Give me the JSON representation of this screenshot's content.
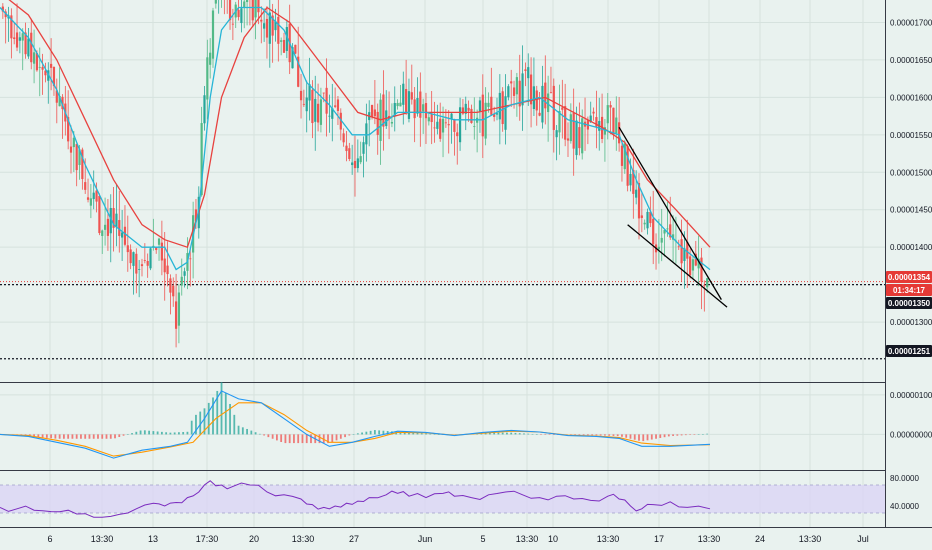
{
  "colors": {
    "background": "#e9f2ef",
    "up_candle": "#26a69a",
    "up_candle_alt": "#53b987",
    "down_candle": "#ef5350",
    "ema_fast": "#26b5d6",
    "ema_slow": "#e8423f",
    "macd_line": "#2196f3",
    "signal_line": "#ff9800",
    "rsi_line": "#7b2cbf",
    "rsi_band": "#d9d3f5",
    "price_tag": "#e53935",
    "dark_tag": "#131722",
    "axis_text": "#131722"
  },
  "price_tags": {
    "last_price": "0.00001354",
    "countdown": "01:34:17",
    "level_1": "0.00001350",
    "level_2": "0.00001251"
  },
  "chart_data": [
    {
      "type": "candlestick",
      "title": "",
      "y_ticks": [
        "0.00001700",
        "0.00001650",
        "0.00001600",
        "0.00001550",
        "0.00001500",
        "0.00001450",
        "0.00001400",
        "0.00001300"
      ],
      "ylim": [
        1.22e-05,
        1.73e-05
      ],
      "x_ticks": [
        "6",
        "13:30",
        "13",
        "17:30",
        "20",
        "13:30",
        "27",
        "Jun",
        "5",
        "13:30",
        "10",
        "13:30",
        "17",
        "13:30",
        "24",
        "13:30",
        "Jul"
      ],
      "horizontal_levels": [
        1.354e-05,
        1.35e-05,
        1.251e-05
      ],
      "close_series": [
        [
          0,
          1.72e-05
        ],
        [
          5,
          1.695e-05
        ],
        [
          10,
          1.665e-05
        ],
        [
          15,
          1.64e-05
        ],
        [
          20,
          1.6e-05
        ],
        [
          25,
          1.55e-05
        ],
        [
          30,
          1.49e-05
        ],
        [
          35,
          1.44e-05
        ],
        [
          40,
          1.43e-05
        ],
        [
          45,
          1.4e-05
        ],
        [
          50,
          1.38e-05
        ],
        [
          55,
          1.41e-05
        ],
        [
          60,
          1.36e-05
        ],
        [
          62,
          1.3e-05
        ],
        [
          64,
          1.35e-05
        ],
        [
          66,
          1.38e-05
        ],
        [
          70,
          1.48e-05
        ],
        [
          72,
          1.62e-05
        ],
        [
          75,
          1.71e-05
        ],
        [
          78,
          1.75e-05
        ],
        [
          82,
          1.72e-05
        ],
        [
          86,
          1.73e-05
        ],
        [
          90,
          1.72e-05
        ],
        [
          95,
          1.7e-05
        ],
        [
          100,
          1.68e-05
        ],
        [
          104,
          1.64e-05
        ],
        [
          108,
          1.6e-05
        ],
        [
          112,
          1.58e-05
        ],
        [
          116,
          1.59e-05
        ],
        [
          120,
          1.56e-05
        ],
        [
          124,
          1.53e-05
        ],
        [
          127,
          1.52e-05
        ],
        [
          130,
          1.56e-05
        ],
        [
          135,
          1.58e-05
        ],
        [
          140,
          1.6e-05
        ],
        [
          145,
          1.59e-05
        ],
        [
          150,
          1.58e-05
        ],
        [
          153,
          1.55e-05
        ],
        [
          157,
          1.56e-05
        ],
        [
          160,
          1.57e-05
        ],
        [
          165,
          1.58e-05
        ],
        [
          170,
          1.57e-05
        ],
        [
          175,
          1.58e-05
        ],
        [
          180,
          1.6e-05
        ],
        [
          185,
          1.62e-05
        ],
        [
          190,
          1.6e-05
        ],
        [
          195,
          1.58e-05
        ],
        [
          200,
          1.56e-05
        ],
        [
          205,
          1.55e-05
        ],
        [
          210,
          1.56e-05
        ],
        [
          215,
          1.57e-05
        ],
        [
          218,
          1.55e-05
        ],
        [
          222,
          1.48e-05
        ],
        [
          225,
          1.44e-05
        ],
        [
          230,
          1.42e-05
        ],
        [
          235,
          1.41e-05
        ],
        [
          240,
          1.39e-05
        ],
        [
          245,
          1.37e-05
        ],
        [
          250,
          1.36e-05
        ]
      ],
      "ema_fast": [
        [
          0,
          1.72e-05
        ],
        [
          10,
          1.68e-05
        ],
        [
          20,
          1.61e-05
        ],
        [
          30,
          1.51e-05
        ],
        [
          40,
          1.43e-05
        ],
        [
          50,
          1.4e-05
        ],
        [
          58,
          1.4e-05
        ],
        [
          62,
          1.37e-05
        ],
        [
          66,
          1.38e-05
        ],
        [
          70,
          1.45e-05
        ],
        [
          74,
          1.6e-05
        ],
        [
          78,
          1.69e-05
        ],
        [
          84,
          1.72e-05
        ],
        [
          92,
          1.72e-05
        ],
        [
          100,
          1.69e-05
        ],
        [
          108,
          1.62e-05
        ],
        [
          116,
          1.59e-05
        ],
        [
          124,
          1.55e-05
        ],
        [
          130,
          1.55e-05
        ],
        [
          140,
          1.58e-05
        ],
        [
          150,
          1.58e-05
        ],
        [
          160,
          1.57e-05
        ],
        [
          170,
          1.57e-05
        ],
        [
          180,
          1.59e-05
        ],
        [
          190,
          1.6e-05
        ],
        [
          200,
          1.57e-05
        ],
        [
          210,
          1.56e-05
        ],
        [
          218,
          1.55e-05
        ],
        [
          224,
          1.49e-05
        ],
        [
          230,
          1.44e-05
        ],
        [
          240,
          1.4e-05
        ],
        [
          250,
          1.37e-05
        ]
      ],
      "ema_slow": [
        [
          0,
          1.74e-05
        ],
        [
          10,
          1.71e-05
        ],
        [
          20,
          1.65e-05
        ],
        [
          30,
          1.57e-05
        ],
        [
          40,
          1.49e-05
        ],
        [
          50,
          1.43e-05
        ],
        [
          58,
          1.41e-05
        ],
        [
          66,
          1.4e-05
        ],
        [
          72,
          1.47e-05
        ],
        [
          78,
          1.6e-05
        ],
        [
          86,
          1.68e-05
        ],
        [
          94,
          1.72e-05
        ],
        [
          102,
          1.7e-05
        ],
        [
          110,
          1.66e-05
        ],
        [
          118,
          1.62e-05
        ],
        [
          126,
          1.58e-05
        ],
        [
          134,
          1.57e-05
        ],
        [
          144,
          1.58e-05
        ],
        [
          156,
          1.58e-05
        ],
        [
          168,
          1.58e-05
        ],
        [
          180,
          1.59e-05
        ],
        [
          192,
          1.6e-05
        ],
        [
          202,
          1.58e-05
        ],
        [
          212,
          1.56e-05
        ],
        [
          220,
          1.54e-05
        ],
        [
          228,
          1.49e-05
        ],
        [
          238,
          1.45e-05
        ],
        [
          250,
          1.4e-05
        ]
      ],
      "annotation": "falling wedge trendlines"
    },
    {
      "type": "line",
      "title": "",
      "y_ticks": [
        "0.00000100",
        "0.00000000"
      ],
      "ylim": [
        -8e-07,
        1.2e-06
      ],
      "series": [
        {
          "key": "macd",
          "values": [
            [
              0,
              0
            ],
            [
              10,
              -5e-08
            ],
            [
              20,
              -2e-07
            ],
            [
              30,
              -3.5e-07
            ],
            [
              40,
              -6e-07
            ],
            [
              50,
              -4e-07
            ],
            [
              60,
              -3e-07
            ],
            [
              66,
              -2e-07
            ],
            [
              72,
              4e-07
            ],
            [
              78,
              1.1e-06
            ],
            [
              84,
              9e-07
            ],
            [
              92,
              8e-07
            ],
            [
              100,
              4e-07
            ],
            [
              108,
              0
            ],
            [
              116,
              -3e-07
            ],
            [
              124,
              -2e-07
            ],
            [
              132,
              -5e-08
            ],
            [
              140,
              8e-08
            ],
            [
              150,
              5e-08
            ],
            [
              160,
              -3e-08
            ],
            [
              170,
              5e-08
            ],
            [
              180,
              1e-07
            ],
            [
              190,
              6e-08
            ],
            [
              200,
              -3e-08
            ],
            [
              210,
              -5e-08
            ],
            [
              218,
              -1e-07
            ],
            [
              226,
              -3e-07
            ],
            [
              236,
              -3e-07
            ],
            [
              250,
              -2.5e-07
            ]
          ]
        },
        {
          "key": "signal",
          "values": [
            [
              0,
              0
            ],
            [
              10,
              -3e-08
            ],
            [
              20,
              -1.5e-07
            ],
            [
              30,
              -3e-07
            ],
            [
              40,
              -5.5e-07
            ],
            [
              50,
              -4.5e-07
            ],
            [
              60,
              -3.2e-07
            ],
            [
              68,
              -2e-07
            ],
            [
              76,
              4e-07
            ],
            [
              84,
              8e-07
            ],
            [
              92,
              8e-07
            ],
            [
              100,
              5e-07
            ],
            [
              108,
              1e-07
            ],
            [
              116,
              -2e-07
            ],
            [
              124,
              -2e-07
            ],
            [
              132,
              -1e-07
            ],
            [
              140,
              5e-08
            ],
            [
              150,
              4e-08
            ],
            [
              160,
              -2e-08
            ],
            [
              170,
              3e-08
            ],
            [
              180,
              8e-08
            ],
            [
              190,
              6e-08
            ],
            [
              200,
              -2e-08
            ],
            [
              210,
              -4e-08
            ],
            [
              218,
              -8e-08
            ],
            [
              226,
              -2.2e-07
            ],
            [
              236,
              -2.8e-07
            ],
            [
              250,
              -2.6e-07
            ]
          ]
        }
      ]
    },
    {
      "type": "line",
      "title": "",
      "y_ticks": [
        "80.0000",
        "40.0000"
      ],
      "ylim": [
        10,
        90
      ],
      "band": [
        30,
        70
      ],
      "series": [
        {
          "key": "rsi",
          "values": [
            [
              0,
              38
            ],
            [
              6,
              36
            ],
            [
              12,
              34
            ],
            [
              18,
              32
            ],
            [
              24,
              34
            ],
            [
              30,
              29
            ],
            [
              36,
              24
            ],
            [
              42,
              28
            ],
            [
              48,
              36
            ],
            [
              54,
              44
            ],
            [
              58,
              40
            ],
            [
              62,
              45
            ],
            [
              66,
              52
            ],
            [
              70,
              60
            ],
            [
              74,
              76
            ],
            [
              78,
              70
            ],
            [
              82,
              68
            ],
            [
              88,
              70
            ],
            [
              94,
              60
            ],
            [
              100,
              56
            ],
            [
              106,
              50
            ],
            [
              110,
              42
            ],
            [
              114,
              38
            ],
            [
              118,
              40
            ],
            [
              122,
              44
            ],
            [
              126,
              47
            ],
            [
              130,
              52
            ],
            [
              136,
              56
            ],
            [
              140,
              58
            ],
            [
              144,
              54
            ],
            [
              150,
              52
            ],
            [
              156,
              58
            ],
            [
              160,
              54
            ],
            [
              166,
              52
            ],
            [
              172,
              56
            ],
            [
              178,
              60
            ],
            [
              184,
              56
            ],
            [
              190,
              52
            ],
            [
              196,
              54
            ],
            [
              202,
              50
            ],
            [
              208,
              48
            ],
            [
              214,
              54
            ],
            [
              218,
              50
            ],
            [
              222,
              40
            ],
            [
              226,
              36
            ],
            [
              230,
              42
            ],
            [
              236,
              46
            ],
            [
              242,
              38
            ],
            [
              250,
              36
            ]
          ]
        }
      ]
    }
  ]
}
